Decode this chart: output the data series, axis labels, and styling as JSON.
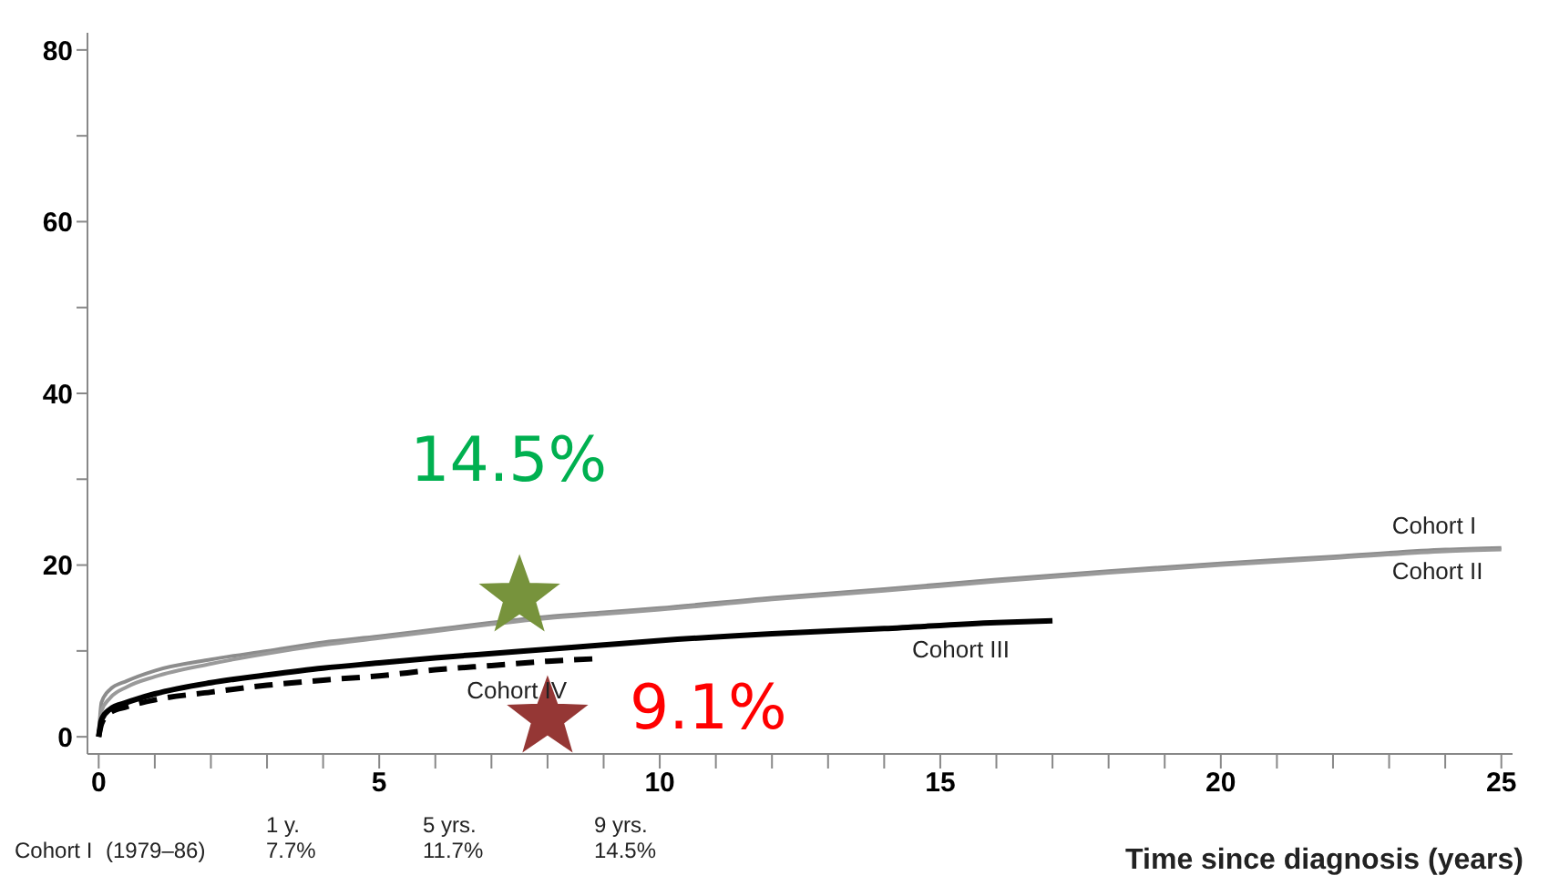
{
  "chart_data": {
    "type": "line",
    "xlabel": "Time since diagnosis (years)",
    "xlim": [
      -0.2,
      25.2
    ],
    "ylim": [
      -2,
      82
    ],
    "xticks": [
      0,
      {
        "value": 1,
        "label": null
      },
      {
        "value": 2,
        "label": null
      },
      {
        "value": 3,
        "label": null
      },
      {
        "value": 4,
        "label": null
      },
      5,
      {
        "value": 6,
        "label": null
      },
      {
        "value": 7,
        "label": null
      },
      {
        "value": 8,
        "label": null
      },
      {
        "value": 9,
        "label": null
      },
      10,
      {
        "value": 11,
        "label": null
      },
      {
        "value": 12,
        "label": null
      },
      {
        "value": 13,
        "label": null
      },
      {
        "value": 14,
        "label": null
      },
      15,
      {
        "value": 16,
        "label": null
      },
      {
        "value": 17,
        "label": null
      },
      {
        "value": 18,
        "label": null
      },
      {
        "value": 19,
        "label": null
      },
      20,
      {
        "value": 21,
        "label": null
      },
      {
        "value": 22,
        "label": null
      },
      {
        "value": 23,
        "label": null
      },
      {
        "value": 24,
        "label": null
      },
      25
    ],
    "yticks": [
      0,
      {
        "value": 10,
        "label": null
      },
      20,
      {
        "value": 30,
        "label": null
      },
      40,
      {
        "value": 50,
        "label": null
      },
      60,
      {
        "value": 70,
        "label": null
      },
      80
    ],
    "grid": false,
    "legend": false,
    "marker": "none",
    "series": [
      {
        "name": "Cohort I",
        "color": "#8c8c8c",
        "line_style": "solid",
        "x": [
          0,
          0.05,
          0.2,
          0.5,
          1,
          2,
          3,
          4,
          5,
          6,
          7,
          8,
          9,
          10,
          12,
          14,
          16,
          18,
          20,
          22,
          24,
          25
        ],
        "values": [
          0,
          4,
          5.5,
          6.5,
          7.7,
          9,
          10,
          11,
          11.7,
          12.5,
          13.3,
          14,
          14.5,
          15,
          16.2,
          17.2,
          18.3,
          19.3,
          20.2,
          21,
          21.8,
          22
        ]
      },
      {
        "name": "Cohort II",
        "color": "#9a9a9a",
        "line_style": "solid",
        "x": [
          0,
          0.05,
          0.2,
          0.5,
          1,
          2,
          3,
          4,
          5,
          6,
          7,
          8,
          9,
          10,
          12,
          14,
          16,
          18,
          20,
          22,
          24,
          25
        ],
        "values": [
          0,
          3,
          4.5,
          5.8,
          7,
          8.5,
          9.7,
          10.7,
          11.5,
          12.3,
          13.1,
          13.8,
          14.3,
          14.8,
          16,
          17,
          18.1,
          19.1,
          20,
          20.8,
          21.6,
          21.8
        ]
      },
      {
        "name": "Cohort III",
        "color": "#000000",
        "line_style": "solid",
        "x": [
          0,
          0.05,
          0.2,
          0.5,
          1,
          2,
          3,
          4,
          5,
          6,
          7,
          8,
          9,
          10,
          12,
          14,
          16,
          17
        ],
        "values": [
          0,
          2,
          3.2,
          4,
          5,
          6.3,
          7.2,
          8,
          8.6,
          9.2,
          9.7,
          10.2,
          10.7,
          11.2,
          12,
          12.6,
          13.3,
          13.5
        ]
      },
      {
        "name": "Cohort IV",
        "color": "#000000",
        "line_style": "dashed",
        "x": [
          0,
          0.05,
          0.2,
          0.5,
          1,
          2,
          3,
          4,
          5,
          6,
          7,
          8,
          8.9
        ],
        "values": [
          0,
          1.5,
          2.8,
          3.5,
          4.3,
          5.2,
          6,
          6.6,
          7.1,
          7.8,
          8.3,
          8.8,
          9.1
        ]
      },
      {
        "type": "scatter",
        "marker": "star",
        "color": "#77933c",
        "x": [
          7.5
        ],
        "values": [
          16.3
        ]
      },
      {
        "type": "scatter",
        "marker": "star",
        "color": "#953735",
        "x": [
          8
        ],
        "values": [
          2.2
        ]
      }
    ],
    "annotations": [
      {
        "text": "14.5%",
        "x": 7.5,
        "y": 16.3
      },
      {
        "text": "9.1%",
        "x": 8,
        "y": 2.2
      },
      "1 y.",
      "5 yrs.",
      "9 yrs.",
      "Cohort I",
      "(1979–86)",
      "7.7%",
      "11.7%",
      "14.5%"
    ]
  }
}
